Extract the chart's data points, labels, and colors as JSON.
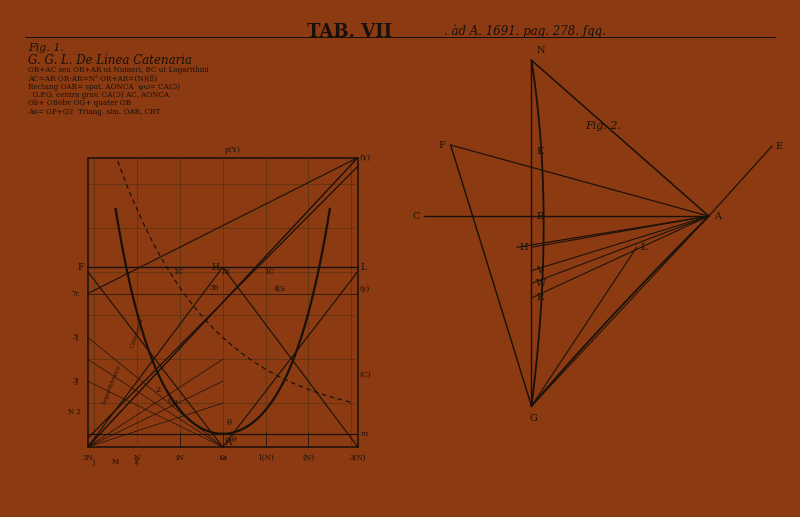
{
  "paper_color": "#d8cea8",
  "border_color": "#8c3a12",
  "line_color": "#18100a",
  "fig1_annotations": [
    "OB+AC seu OR+AR ut Numeri, BC ut Logarithmi",
    "AC=AR OR-AR=N³ OR+AR=(N)(ß)",
    "Rectang OAR= spat. AONCA  ψω= CA(Ɔ)",
    "  G.P.Q. centra grav. CA(Ɔ) AC, AONCA",
    "Ob+ OBobv OG+ quater OB",
    "Ao= GP+Q2  Triang. sim. OAR, CBT"
  ],
  "title1": "TAB. VII",
  "title2": ". àd A. 1691. pag. 278. ƒqq.",
  "fig1_label": "Fig. 1.",
  "fig1_sub": "G. G. L. De Linea Catenaria",
  "fig2_label": "Fig. 2."
}
